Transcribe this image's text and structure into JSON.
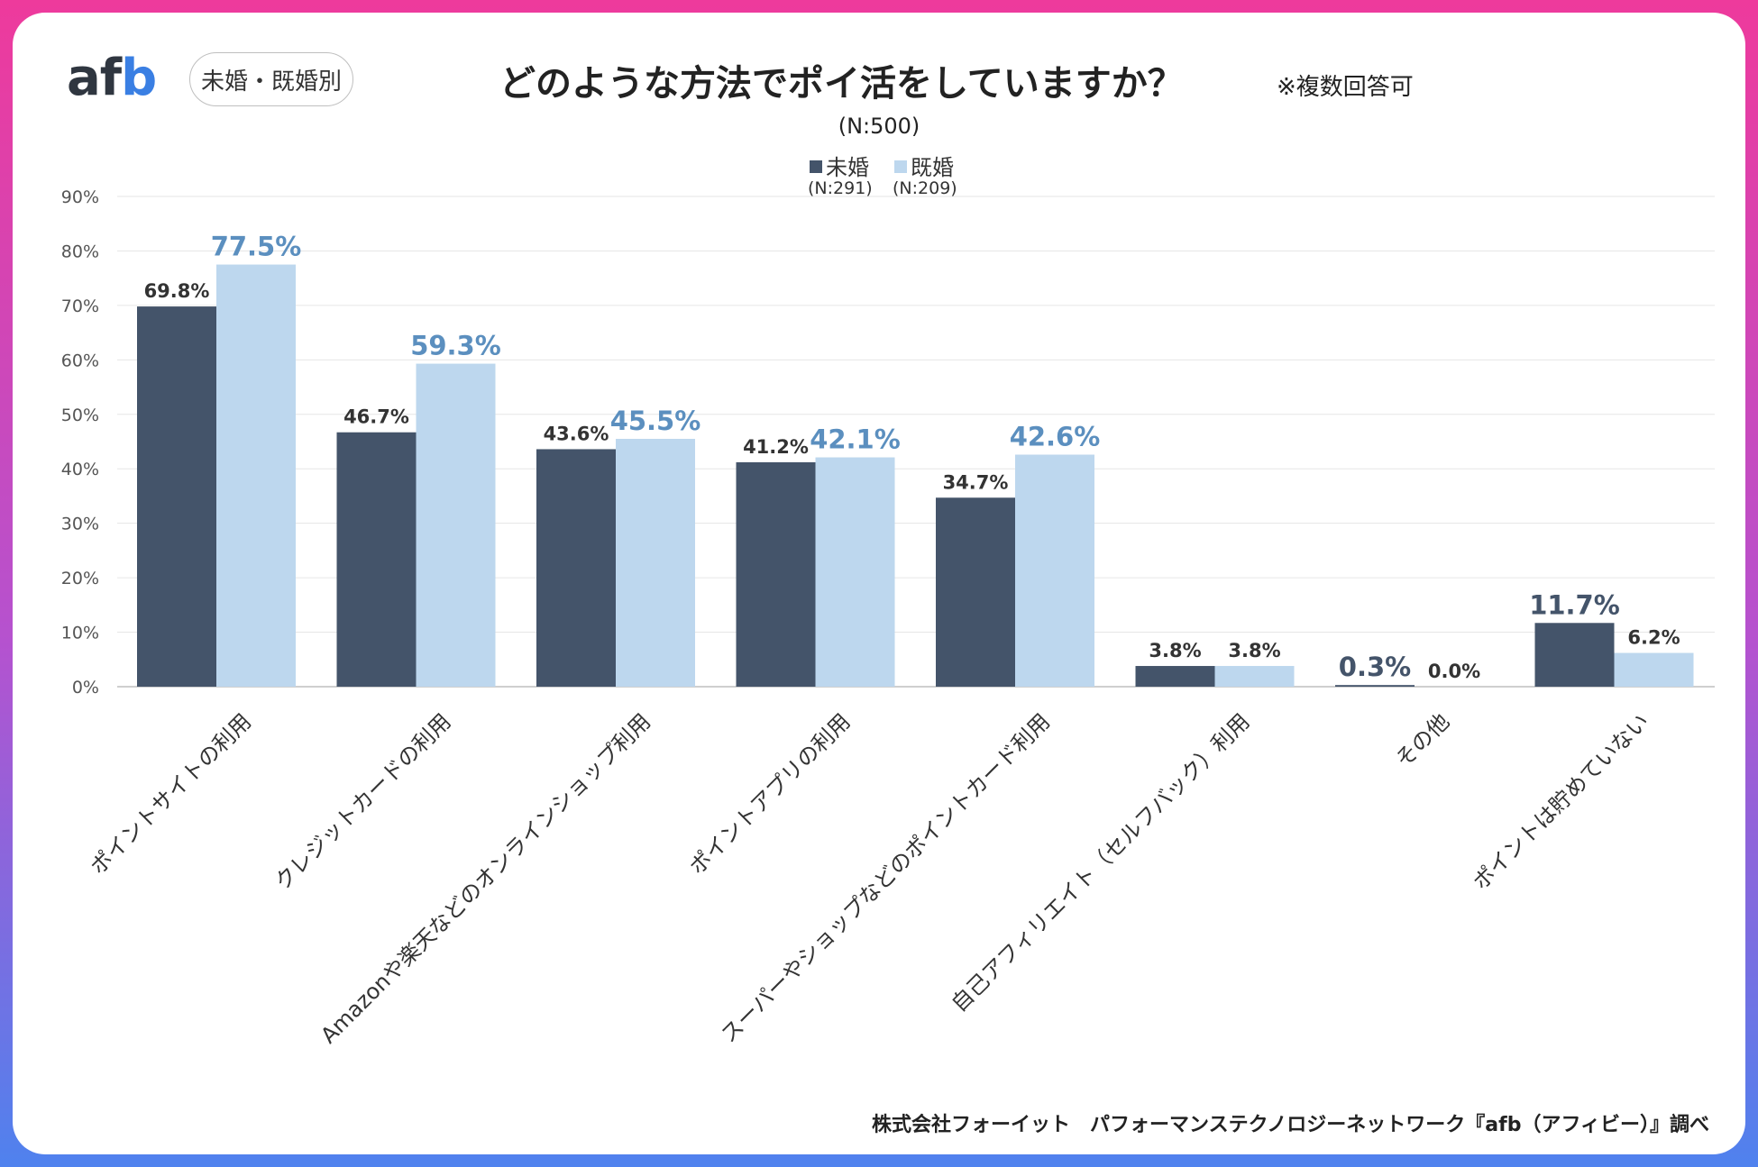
{
  "header": {
    "logo_main": "af",
    "logo_accent": "b",
    "badge": "未婚・既婚別",
    "title": "どのような方法でポイ活をしていますか？",
    "title_note": "※複数回答可",
    "sample": "(N:500)"
  },
  "legend": [
    {
      "label": "未婚",
      "n": "(N:291)",
      "color": "#44546a"
    },
    {
      "label": "既婚",
      "n": "(N:209)",
      "color": "#bdd7ee"
    }
  ],
  "chart_data": {
    "type": "bar",
    "title": "どのような方法でポイ活をしていますか？",
    "categories": [
      "ポイントサイトの利用",
      "クレジットカードの利用",
      "Amazonや楽天などのオンラインショップ利用",
      "ポイントアプリの利用",
      "スーパーやショップなどのポイントカード利用",
      "自己アフィリエイト（セルフバック）利用",
      "その他",
      "ポイントは貯めていない"
    ],
    "series": [
      {
        "name": "未婚",
        "color": "#44546a",
        "values": [
          69.8,
          46.7,
          43.6,
          41.2,
          34.7,
          3.8,
          0.3,
          11.7
        ],
        "labels": [
          "69.8%",
          "46.7%",
          "43.6%",
          "41.2%",
          "34.7%",
          "3.8%",
          "0.3%",
          "11.7%"
        ]
      },
      {
        "name": "既婚",
        "color": "#bdd7ee",
        "values": [
          77.5,
          59.3,
          45.5,
          42.1,
          42.6,
          3.8,
          0.0,
          6.2
        ],
        "labels": [
          "77.5%",
          "59.3%",
          "45.5%",
          "42.1%",
          "42.6%",
          "3.8%",
          "0.0%",
          "6.2%"
        ]
      }
    ],
    "highlight_colors": {
      "higher_single": "#44546a",
      "higher_married": "#5b8fbf",
      "normal": "#333333"
    },
    "yticks": [
      "0%",
      "10%",
      "20%",
      "30%",
      "40%",
      "50%",
      "60%",
      "70%",
      "80%",
      "90%"
    ],
    "ylim": [
      0,
      90
    ],
    "grid": true,
    "xlabel": "",
    "ylabel": ""
  },
  "footer": "株式会社フォーイット　パフォーマンステクノロジーネットワーク『afb（アフィビー）』調べ"
}
